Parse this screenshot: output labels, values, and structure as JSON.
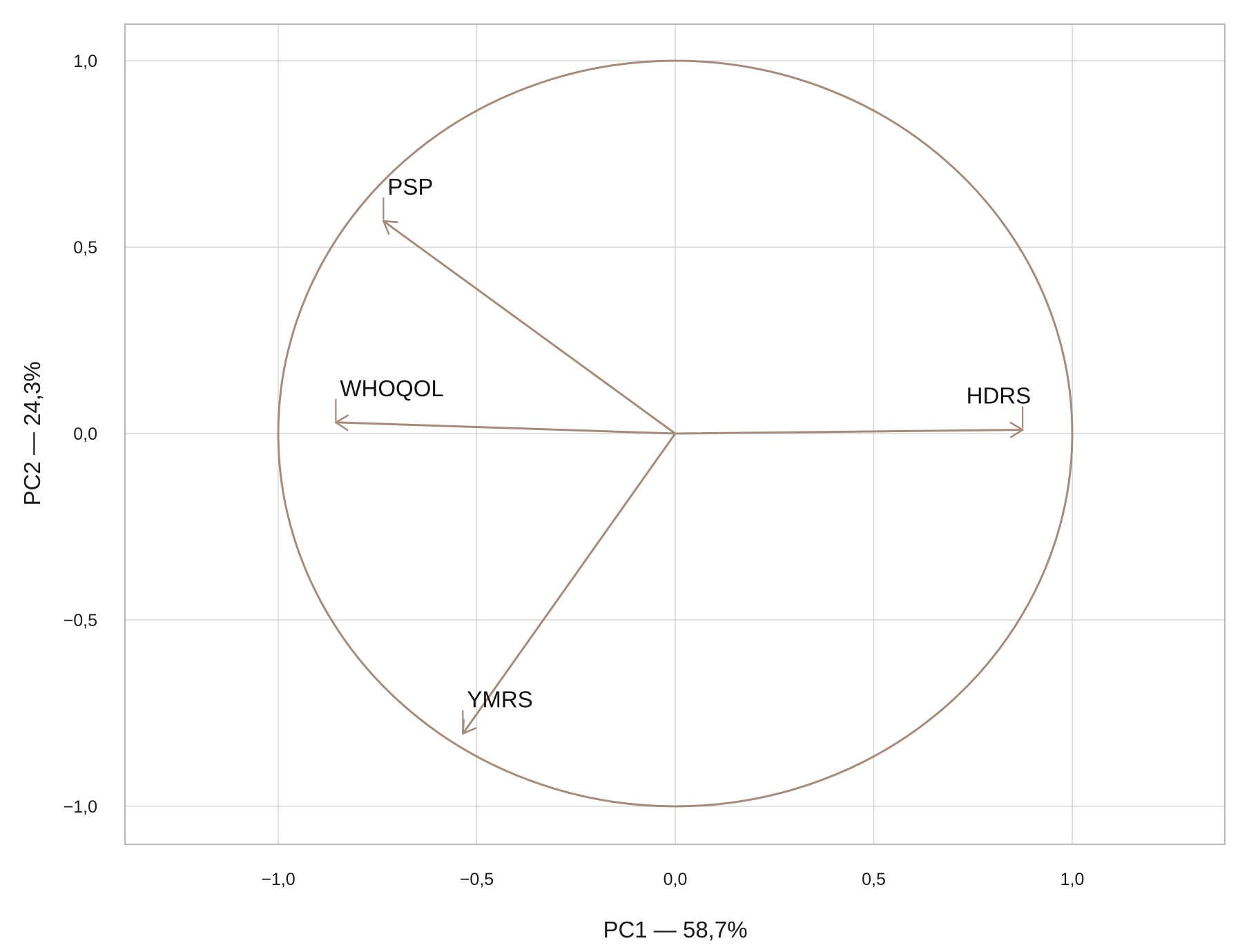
{
  "chart_data": {
    "type": "scatter",
    "subtype": "pca-correlation-circle",
    "title": "",
    "xlabel": "PC1 — 58,7%",
    "ylabel": "PC2 — 24,3%",
    "xlim": [
      -1.4,
      1.4
    ],
    "ylim": [
      -1.1,
      1.1
    ],
    "x_ticks": [
      {
        "value": -1.0,
        "label": "−1,0"
      },
      {
        "value": -0.5,
        "label": "−0,5"
      },
      {
        "value": 0.0,
        "label": "0,0"
      },
      {
        "value": 0.5,
        "label": "0,5"
      },
      {
        "value": 1.0,
        "label": "1,0"
      }
    ],
    "y_ticks": [
      {
        "value": 1.0,
        "label": "1,0"
      },
      {
        "value": 0.5,
        "label": "0,5"
      },
      {
        "value": 0.0,
        "label": "0,0"
      },
      {
        "value": -0.5,
        "label": "−0,5"
      },
      {
        "value": -1.0,
        "label": "−1,0"
      }
    ],
    "grid": true,
    "unit_circle": {
      "radius": 1.0
    },
    "vectors": [
      {
        "name": "PSP",
        "x": -0.735,
        "y": 0.57
      },
      {
        "name": "WHOQOL",
        "x": -0.855,
        "y": 0.03
      },
      {
        "name": "HDRS",
        "x": 0.875,
        "y": 0.01
      },
      {
        "name": "YMRS",
        "x": -0.535,
        "y": -0.805
      }
    ],
    "colors": {
      "vector": "#a38c7b",
      "circle": "#a38c7b",
      "grid": "#cfcfcf"
    }
  }
}
